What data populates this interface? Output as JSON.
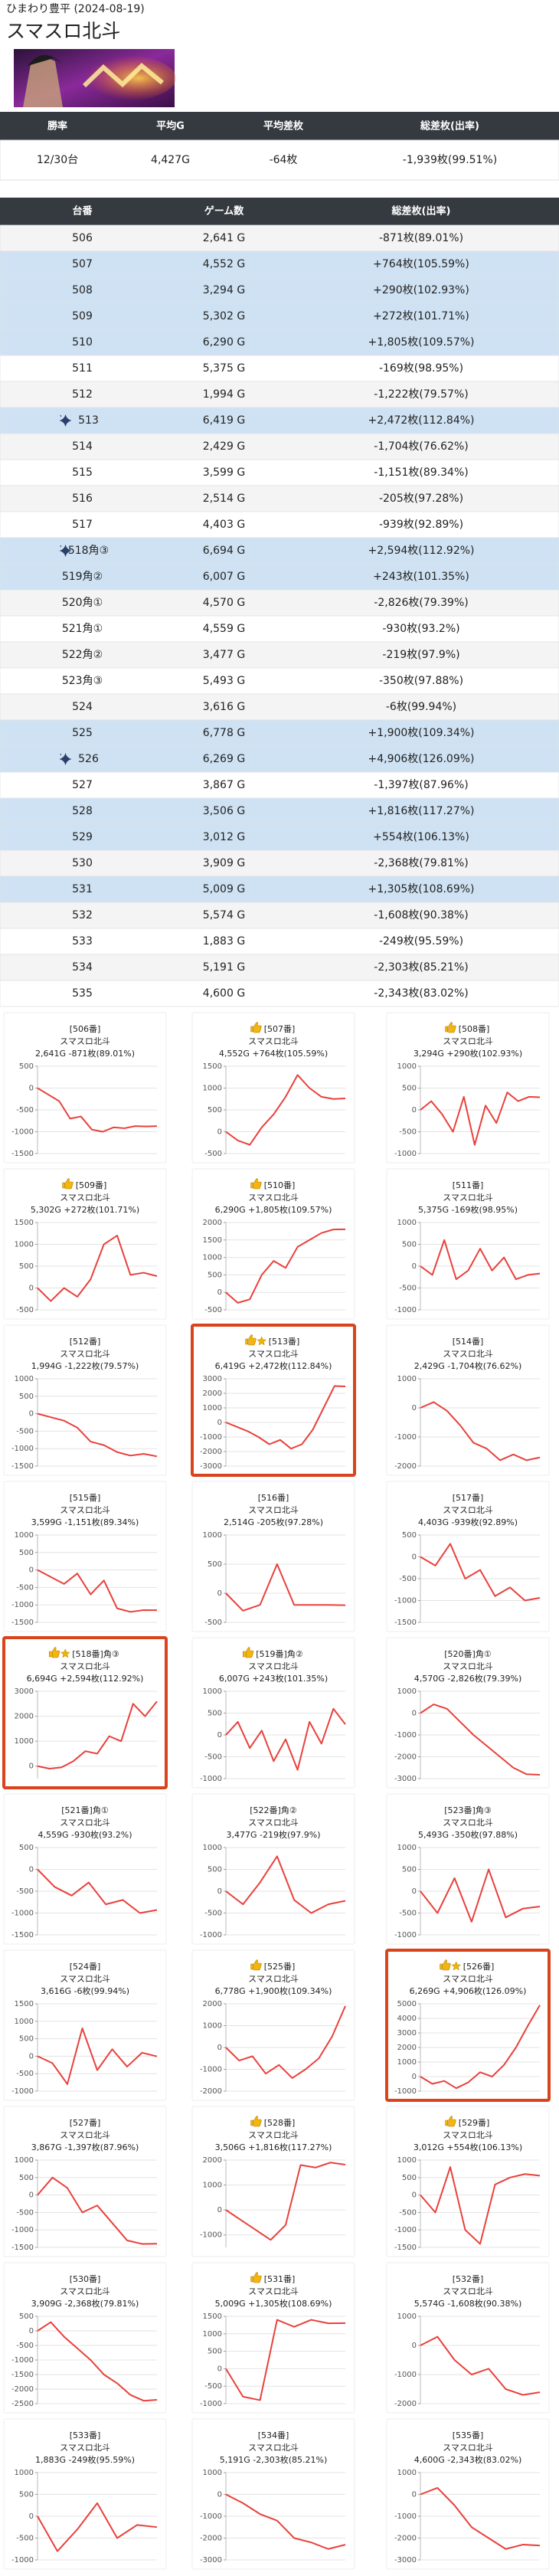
{
  "header": {
    "store": "ひまわり豊平 (2024-08-19)",
    "title": "スマスロ北斗"
  },
  "summary": {
    "headers": [
      "勝率",
      "平均G",
      "平均差枚",
      "総差枚(出率)"
    ],
    "rows": [
      [
        "12/30台",
        "4,427G",
        "-64枚",
        "-1,939枚(99.51%)"
      ]
    ]
  },
  "table": {
    "headers": [
      "台番",
      "ゲーム数",
      "総差枚(出率)"
    ],
    "rows": [
      {
        "cells": [
          "506",
          "2,641 G",
          "-871枚(89.01%)"
        ]
      },
      {
        "cells": [
          "507",
          "4,552 G",
          "+764枚(105.59%)"
        ],
        "blue": true
      },
      {
        "cells": [
          "508",
          "3,294 G",
          "+290枚(102.93%)"
        ],
        "blue": true
      },
      {
        "cells": [
          "509",
          "5,302 G",
          "+272枚(101.71%)"
        ],
        "blue": true
      },
      {
        "cells": [
          "510",
          "6,290 G",
          "+1,805枚(109.57%)"
        ],
        "blue": true
      },
      {
        "cells": [
          "511",
          "5,375 G",
          "-169枚(98.95%)"
        ]
      },
      {
        "cells": [
          "512",
          "1,994 G",
          "-1,222枚(79.57%)"
        ]
      },
      {
        "cells": [
          "513",
          "6,419 G",
          "+2,472枚(112.84%)"
        ],
        "blue": true,
        "sparkle": true
      },
      {
        "cells": [
          "514",
          "2,429 G",
          "-1,704枚(76.62%)"
        ]
      },
      {
        "cells": [
          "515",
          "3,599 G",
          "-1,151枚(89.34%)"
        ]
      },
      {
        "cells": [
          "516",
          "2,514 G",
          "-205枚(97.28%)"
        ]
      },
      {
        "cells": [
          "517",
          "4,403 G",
          "-939枚(92.89%)"
        ]
      },
      {
        "cells": [
          "518角③",
          "6,694 G",
          "+2,594枚(112.92%)"
        ],
        "blue": true,
        "sparkle": true
      },
      {
        "cells": [
          "519角②",
          "6,007 G",
          "+243枚(101.35%)"
        ],
        "blue": true
      },
      {
        "cells": [
          "520角①",
          "4,570 G",
          "-2,826枚(79.39%)"
        ]
      },
      {
        "cells": [
          "521角①",
          "4,559 G",
          "-930枚(93.2%)"
        ]
      },
      {
        "cells": [
          "522角②",
          "3,477 G",
          "-219枚(97.9%)"
        ]
      },
      {
        "cells": [
          "523角③",
          "5,493 G",
          "-350枚(97.88%)"
        ]
      },
      {
        "cells": [
          "524",
          "3,616 G",
          "-6枚(99.94%)"
        ]
      },
      {
        "cells": [
          "525",
          "6,778 G",
          "+1,900枚(109.34%)"
        ],
        "blue": true
      },
      {
        "cells": [
          "526",
          "6,269 G",
          "+4,906枚(126.09%)"
        ],
        "blue": true,
        "sparkle": true
      },
      {
        "cells": [
          "527",
          "3,867 G",
          "-1,397枚(87.96%)"
        ]
      },
      {
        "cells": [
          "528",
          "3,506 G",
          "+1,816枚(117.27%)"
        ],
        "blue": true
      },
      {
        "cells": [
          "529",
          "3,012 G",
          "+554枚(106.13%)"
        ],
        "blue": true
      },
      {
        "cells": [
          "530",
          "3,909 G",
          "-2,368枚(79.81%)"
        ]
      },
      {
        "cells": [
          "531",
          "5,009 G",
          "+1,305枚(108.69%)"
        ],
        "blue": true
      },
      {
        "cells": [
          "532",
          "5,574 G",
          "-1,608枚(90.38%)"
        ]
      },
      {
        "cells": [
          "533",
          "1,883 G",
          "-249枚(95.59%)"
        ]
      },
      {
        "cells": [
          "534",
          "5,191 G",
          "-2,303枚(85.21%)"
        ]
      },
      {
        "cells": [
          "535",
          "4,600 G",
          "-2,343枚(83.02%)"
        ]
      }
    ]
  },
  "chart_data": [
    {
      "type": "line",
      "title": "[506番]",
      "subtitle": "スマスロ北斗",
      "caption": "2,641G -871枚(89.01%)",
      "color": "#e8413c",
      "grid": true,
      "ylim": [
        -1500,
        500
      ],
      "yticks": [
        -1500,
        -1000,
        -500,
        0,
        500
      ],
      "values": [
        0,
        -150,
        -300,
        -700,
        -650,
        -950,
        -1000,
        -900,
        -920,
        -870,
        -880,
        -871
      ]
    },
    {
      "type": "line",
      "title": "[507番]",
      "subtitle": "スマスロ北斗",
      "caption": "4,552G +764枚(105.59%)",
      "thumb": true,
      "color": "#e8413c",
      "grid": true,
      "ylim": [
        -500,
        1500
      ],
      "yticks": [
        -500,
        0,
        500,
        1000,
        1500
      ],
      "values": [
        0,
        -200,
        -300,
        100,
        400,
        800,
        1300,
        1000,
        800,
        750,
        764
      ]
    },
    {
      "type": "line",
      "title": "[508番]",
      "subtitle": "スマスロ北斗",
      "caption": "3,294G +290枚(102.93%)",
      "thumb": true,
      "color": "#e8413c",
      "grid": true,
      "ylim": [
        -1000,
        1000
      ],
      "yticks": [
        -1000,
        -500,
        0,
        500,
        1000
      ],
      "values": [
        0,
        200,
        -100,
        -500,
        300,
        -800,
        100,
        -300,
        400,
        200,
        300,
        290
      ]
    },
    {
      "type": "line",
      "title": "[509番]",
      "subtitle": "スマスロ北斗",
      "caption": "5,302G +272枚(101.71%)",
      "thumb": true,
      "color": "#e8413c",
      "grid": true,
      "ylim": [
        -500,
        1500
      ],
      "yticks": [
        -500,
        0,
        500,
        1000,
        1500
      ],
      "values": [
        0,
        -300,
        0,
        -200,
        200,
        1000,
        1200,
        300,
        350,
        272
      ]
    },
    {
      "type": "line",
      "title": "[510番]",
      "subtitle": "スマスロ北斗",
      "caption": "6,290G +1,805枚(109.57%)",
      "thumb": true,
      "color": "#e8413c",
      "grid": true,
      "ylim": [
        -500,
        2000
      ],
      "yticks": [
        -500,
        0,
        500,
        1000,
        1500,
        2000
      ],
      "values": [
        0,
        -300,
        -200,
        500,
        900,
        700,
        1300,
        1500,
        1700,
        1800,
        1805
      ]
    },
    {
      "type": "line",
      "title": "[511番]",
      "subtitle": "スマスロ北斗",
      "caption": "5,375G -169枚(98.95%)",
      "color": "#e8413c",
      "grid": true,
      "ylim": [
        -1000,
        1000
      ],
      "yticks": [
        -1000,
        -500,
        0,
        500,
        1000
      ],
      "values": [
        0,
        -200,
        600,
        -300,
        -100,
        400,
        -100,
        200,
        -300,
        -200,
        -169
      ]
    },
    {
      "type": "line",
      "title": "[512番]",
      "subtitle": "スマスロ北斗",
      "caption": "1,994G -1,222枚(79.57%)",
      "color": "#e8413c",
      "grid": true,
      "ylim": [
        -1500,
        1000
      ],
      "yticks": [
        -1500,
        -1000,
        -500,
        0,
        500,
        1000
      ],
      "values": [
        0,
        -100,
        -200,
        -400,
        -800,
        -900,
        -1100,
        -1200,
        -1150,
        -1222
      ]
    },
    {
      "type": "line",
      "title": "[513番]",
      "subtitle": "スマスロ北斗",
      "caption": "6,419G +2,472枚(112.84%)",
      "thumb": true,
      "star": true,
      "highlight": true,
      "color": "#e8413c",
      "grid": true,
      "ylim": [
        -3000,
        3000
      ],
      "yticks": [
        -3000,
        -2000,
        -1000,
        0,
        1000,
        2000,
        3000
      ],
      "values": [
        0,
        -300,
        -600,
        -1000,
        -1500,
        -1200,
        -1800,
        -1500,
        -500,
        1000,
        2500,
        2472
      ]
    },
    {
      "type": "line",
      "title": "[514番]",
      "subtitle": "スマスロ北斗",
      "caption": "2,429G -1,704枚(76.62%)",
      "color": "#e8413c",
      "grid": true,
      "ylim": [
        -2000,
        1000
      ],
      "yticks": [
        -2000,
        -1000,
        0,
        1000
      ],
      "values": [
        0,
        200,
        -100,
        -600,
        -1200,
        -1400,
        -1800,
        -1600,
        -1800,
        -1704
      ]
    },
    {
      "type": "line",
      "title": "[515番]",
      "subtitle": "スマスロ北斗",
      "caption": "3,599G -1,151枚(89.34%)",
      "color": "#e8413c",
      "grid": true,
      "ylim": [
        -1500,
        1000
      ],
      "yticks": [
        -1500,
        -1000,
        -500,
        0,
        500,
        1000
      ],
      "values": [
        0,
        -200,
        -400,
        -100,
        -700,
        -300,
        -1100,
        -1200,
        -1150,
        -1151
      ]
    },
    {
      "type": "line",
      "title": "[516番]",
      "subtitle": "スマスロ北斗",
      "caption": "2,514G -205枚(97.28%)",
      "color": "#e8413c",
      "grid": true,
      "ylim": [
        -500,
        1000
      ],
      "yticks": [
        -500,
        0,
        500,
        1000
      ],
      "values": [
        0,
        -300,
        -200,
        500,
        -200,
        -200,
        -200,
        -205
      ]
    },
    {
      "type": "line",
      "title": "[517番]",
      "subtitle": "スマスロ北斗",
      "caption": "4,403G -939枚(92.89%)",
      "color": "#e8413c",
      "grid": true,
      "ylim": [
        -1500,
        500
      ],
      "yticks": [
        -1500,
        -1000,
        -500,
        0,
        500
      ],
      "values": [
        0,
        -200,
        300,
        -500,
        -300,
        -900,
        -700,
        -1000,
        -939
      ]
    },
    {
      "type": "line",
      "title": "[518番]角③",
      "subtitle": "スマスロ北斗",
      "caption": "6,694G +2,594枚(112.92%)",
      "thumb": true,
      "star": true,
      "highlight": true,
      "color": "#e8413c",
      "grid": true,
      "ylim": [
        -500,
        3000
      ],
      "yticks": [
        0,
        1000,
        2000,
        3000
      ],
      "values": [
        0,
        -100,
        -50,
        200,
        600,
        500,
        1200,
        1000,
        2500,
        2000,
        2594
      ]
    },
    {
      "type": "line",
      "title": "[519番]角②",
      "subtitle": "スマスロ北斗",
      "caption": "6,007G +243枚(101.35%)",
      "thumb": true,
      "color": "#e8413c",
      "grid": true,
      "ylim": [
        -1000,
        1000
      ],
      "yticks": [
        -1000,
        -500,
        0,
        500,
        1000
      ],
      "values": [
        0,
        300,
        -300,
        100,
        -600,
        -100,
        -800,
        300,
        -200,
        600,
        243
      ]
    },
    {
      "type": "line",
      "title": "[520番]角①",
      "subtitle": "スマスロ北斗",
      "caption": "4,570G -2,826枚(79.39%)",
      "color": "#e8413c",
      "grid": true,
      "ylim": [
        -3000,
        1000
      ],
      "yticks": [
        -3000,
        -2000,
        -1000,
        0,
        1000
      ],
      "values": [
        0,
        400,
        200,
        -400,
        -1000,
        -1500,
        -2000,
        -2500,
        -2800,
        -2826
      ]
    },
    {
      "type": "line",
      "title": "[521番]角①",
      "subtitle": "スマスロ北斗",
      "caption": "4,559G -930枚(93.2%)",
      "color": "#e8413c",
      "grid": true,
      "ylim": [
        -1500,
        500
      ],
      "yticks": [
        -1500,
        -1000,
        -500,
        0,
        500
      ],
      "values": [
        0,
        -400,
        -600,
        -300,
        -800,
        -700,
        -1000,
        -930
      ]
    },
    {
      "type": "line",
      "title": "[522番]角②",
      "subtitle": "スマスロ北斗",
      "caption": "3,477G -219枚(97.9%)",
      "color": "#e8413c",
      "grid": true,
      "ylim": [
        -1000,
        1000
      ],
      "yticks": [
        -1000,
        -500,
        0,
        500,
        1000
      ],
      "values": [
        0,
        -300,
        200,
        800,
        -200,
        -500,
        -300,
        -219
      ]
    },
    {
      "type": "line",
      "title": "[523番]角③",
      "subtitle": "スマスロ北斗",
      "caption": "5,493G -350枚(97.88%)",
      "color": "#e8413c",
      "grid": true,
      "ylim": [
        -1000,
        1000
      ],
      "yticks": [
        -1000,
        -500,
        0,
        500,
        1000
      ],
      "values": [
        0,
        -500,
        300,
        -700,
        500,
        -600,
        -400,
        -350
      ]
    },
    {
      "type": "line",
      "title": "[524番]",
      "subtitle": "スマスロ北斗",
      "caption": "3,616G -6枚(99.94%)",
      "color": "#e8413c",
      "grid": true,
      "ylim": [
        -1000,
        1500
      ],
      "yticks": [
        -1000,
        -500,
        0,
        500,
        1000,
        1500
      ],
      "values": [
        0,
        -200,
        -800,
        800,
        -400,
        200,
        -300,
        100,
        -6
      ]
    },
    {
      "type": "line",
      "title": "[525番]",
      "subtitle": "スマスロ北斗",
      "caption": "6,778G +1,900枚(109.34%)",
      "thumb": true,
      "color": "#e8413c",
      "grid": true,
      "ylim": [
        -2000,
        2000
      ],
      "yticks": [
        -2000,
        -1000,
        0,
        1000,
        2000
      ],
      "values": [
        0,
        -600,
        -400,
        -1200,
        -800,
        -1400,
        -1000,
        -500,
        500,
        1900
      ]
    },
    {
      "type": "line",
      "title": "[526番]",
      "subtitle": "スマスロ北斗",
      "caption": "6,269G +4,906枚(126.09%)",
      "thumb": true,
      "star": true,
      "highlight": true,
      "color": "#e8413c",
      "grid": true,
      "ylim": [
        -1000,
        5000
      ],
      "yticks": [
        -1000,
        0,
        1000,
        2000,
        3000,
        4000,
        5000
      ],
      "values": [
        0,
        -500,
        -300,
        -800,
        -400,
        300,
        0,
        800,
        2000,
        3500,
        4906
      ]
    },
    {
      "type": "line",
      "title": "[527番]",
      "subtitle": "スマスロ北斗",
      "caption": "3,867G -1,397枚(87.96%)",
      "color": "#e8413c",
      "grid": true,
      "ylim": [
        -1500,
        1000
      ],
      "yticks": [
        -1500,
        -1000,
        -500,
        0,
        500,
        1000
      ],
      "values": [
        0,
        500,
        200,
        -500,
        -300,
        -800,
        -1300,
        -1400,
        -1397
      ]
    },
    {
      "type": "line",
      "title": "[528番]",
      "subtitle": "スマスロ北斗",
      "caption": "3,506G +1,816枚(117.27%)",
      "thumb": true,
      "color": "#e8413c",
      "grid": true,
      "ylim": [
        -1500,
        2000
      ],
      "yticks": [
        -1000,
        0,
        1000,
        2000
      ],
      "values": [
        0,
        -400,
        -800,
        -1200,
        -600,
        1800,
        1700,
        1900,
        1816
      ]
    },
    {
      "type": "line",
      "title": "[529番]",
      "subtitle": "スマスロ北斗",
      "caption": "3,012G +554枚(106.13%)",
      "thumb": true,
      "color": "#e8413c",
      "grid": true,
      "ylim": [
        -1500,
        1000
      ],
      "yticks": [
        -1500,
        -1000,
        -500,
        0,
        500,
        1000
      ],
      "values": [
        0,
        -500,
        800,
        -1000,
        -1400,
        300,
        500,
        600,
        554
      ]
    },
    {
      "type": "line",
      "title": "[530番]",
      "subtitle": "スマスロ北斗",
      "caption": "3,909G -2,368枚(79.81%)",
      "color": "#e8413c",
      "grid": true,
      "ylim": [
        -2500,
        500
      ],
      "yticks": [
        -2500,
        -2000,
        -1500,
        -1000,
        -500,
        0,
        500
      ],
      "values": [
        0,
        300,
        -200,
        -600,
        -1000,
        -1500,
        -1800,
        -2200,
        -2400,
        -2368
      ]
    },
    {
      "type": "line",
      "title": "[531番]",
      "subtitle": "スマスロ北斗",
      "caption": "5,009G +1,305枚(108.69%)",
      "thumb": true,
      "color": "#e8413c",
      "grid": true,
      "ylim": [
        -1000,
        1500
      ],
      "yticks": [
        -1000,
        -500,
        0,
        500,
        1000,
        1500
      ],
      "values": [
        0,
        -800,
        -900,
        1400,
        1200,
        1400,
        1300,
        1305
      ]
    },
    {
      "type": "line",
      "title": "[532番]",
      "subtitle": "スマスロ北斗",
      "caption": "5,574G -1,608枚(90.38%)",
      "color": "#e8413c",
      "grid": true,
      "ylim": [
        -2000,
        1000
      ],
      "yticks": [
        -2000,
        -1000,
        0,
        1000
      ],
      "values": [
        0,
        300,
        -500,
        -1000,
        -800,
        -1500,
        -1700,
        -1608
      ]
    },
    {
      "type": "line",
      "title": "[533番]",
      "subtitle": "スマスロ北斗",
      "caption": "1,883G -249枚(95.59%)",
      "color": "#e8413c",
      "grid": true,
      "ylim": [
        -1000,
        1000
      ],
      "yticks": [
        -1000,
        -500,
        0,
        500,
        1000
      ],
      "values": [
        0,
        -800,
        -300,
        300,
        -500,
        -200,
        -249
      ]
    },
    {
      "type": "line",
      "title": "[534番]",
      "subtitle": "スマスロ北斗",
      "caption": "5,191G -2,303枚(85.21%)",
      "color": "#e8413c",
      "grid": true,
      "ylim": [
        -3000,
        1000
      ],
      "yticks": [
        -3000,
        -2000,
        -1000,
        0,
        1000
      ],
      "values": [
        0,
        -400,
        -900,
        -1200,
        -2000,
        -2200,
        -2500,
        -2303
      ]
    },
    {
      "type": "line",
      "title": "[535番]",
      "subtitle": "スマスロ北斗",
      "caption": "4,600G -2,343枚(83.02%)",
      "color": "#e8413c",
      "grid": true,
      "ylim": [
        -3000,
        1000
      ],
      "yticks": [
        -3000,
        -2000,
        -1000,
        0,
        1000
      ],
      "values": [
        0,
        300,
        -500,
        -1500,
        -2000,
        -2500,
        -2300,
        -2343
      ]
    }
  ]
}
